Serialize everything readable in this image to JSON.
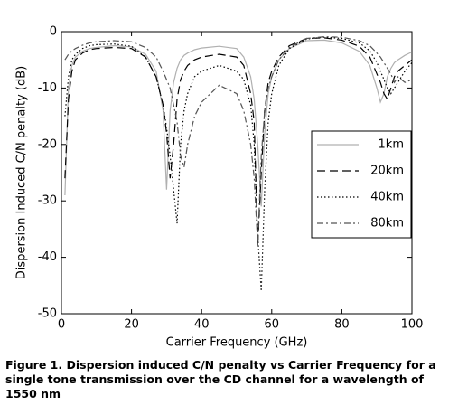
{
  "chart_data": {
    "type": "line",
    "xlabel": "Carrier Frequency (GHz)",
    "ylabel": "Dispersion Induced C/N penalty (dB)",
    "caption": "Figure 1. Dispersion induced C/N penalty vs Carrier Frequency for a single tone transmission over the CD channel for a wavelength of 1550 nm",
    "x": [
      1,
      2,
      3,
      4,
      6,
      8,
      10,
      15,
      20,
      24,
      27,
      29,
      30,
      31,
      32,
      33,
      34,
      35,
      36,
      38,
      40,
      45,
      50,
      52,
      54,
      55,
      56,
      57,
      58,
      59,
      60,
      62,
      65,
      70,
      75,
      80,
      85,
      88,
      90,
      91,
      92,
      93,
      94,
      95,
      96,
      98,
      100
    ],
    "series": [
      {
        "name": "1km",
        "color": "#b0b0b0",
        "dash": "none",
        "values": [
          -29,
          -10,
          -6,
          -4.5,
          -3.5,
          -3,
          -2.8,
          -2.5,
          -2.7,
          -4,
          -7,
          -14,
          -28,
          -14,
          -9,
          -6.5,
          -5,
          -4.2,
          -3.8,
          -3.2,
          -2.9,
          -2.6,
          -3,
          -4.5,
          -8,
          -12,
          -20,
          -31,
          -18,
          -11,
          -8,
          -5,
          -3,
          -1.6,
          -1.5,
          -2,
          -3.5,
          -6,
          -10,
          -12.5,
          -11,
          -8,
          -6.5,
          -5.5,
          -5,
          -4.2,
          -3.6
        ]
      },
      {
        "name": "20km",
        "color": "#000000",
        "dash": "9 5",
        "values": [
          -26,
          -12,
          -7,
          -5,
          -3.8,
          -3.2,
          -3,
          -2.8,
          -3,
          -4.5,
          -8,
          -13,
          -18,
          -26,
          -20,
          -12,
          -8.5,
          -7,
          -6,
          -5,
          -4.5,
          -4,
          -4.5,
          -6,
          -11,
          -16,
          -38,
          -25,
          -14,
          -9,
          -7,
          -4.5,
          -2.5,
          -1.2,
          -1.1,
          -1.5,
          -2.6,
          -4.5,
          -7.5,
          -9,
          -11,
          -12,
          -10,
          -8,
          -7,
          -6,
          -5
        ]
      },
      {
        "name": "40km",
        "color": "#000000",
        "dash": "1.5 2.5",
        "values": [
          -15,
          -8,
          -5,
          -4,
          -3,
          -2.5,
          -2.3,
          -2.2,
          -2.6,
          -4.5,
          -8,
          -13,
          -17,
          -22,
          -28,
          -34,
          -20,
          -14,
          -11,
          -8,
          -7,
          -6,
          -7,
          -8.5,
          -13,
          -20,
          -36,
          -46,
          -28,
          -16,
          -11,
          -6,
          -3,
          -1.3,
          -1,
          -1.2,
          -2,
          -3.4,
          -5.5,
          -7,
          -8.5,
          -10,
          -11,
          -10,
          -9,
          -7,
          -5.5
        ]
      },
      {
        "name": "80km",
        "color": "#555555",
        "dash": "7 3 2 3",
        "values": [
          -5,
          -4,
          -3.4,
          -3,
          -2.4,
          -2,
          -1.8,
          -1.6,
          -1.8,
          -2.8,
          -4.5,
          -7,
          -8.5,
          -10,
          -13,
          -16,
          -22,
          -24,
          -20,
          -15,
          -12.5,
          -9.5,
          -11,
          -14,
          -20,
          -26,
          -38,
          -22,
          -14,
          -10,
          -8,
          -5,
          -2.8,
          -1.2,
          -0.9,
          -1,
          -1.6,
          -2.5,
          -3.8,
          -4.5,
          -5.5,
          -6.5,
          -7.5,
          -9,
          -8,
          -9,
          -8.5
        ]
      }
    ],
    "xlim": [
      0,
      100
    ],
    "xticks": [
      0,
      20,
      40,
      60,
      80,
      100
    ],
    "ylim": [
      -50,
      0
    ],
    "yticks": [
      -50,
      -40,
      -30,
      -20,
      -10,
      0
    ],
    "grid": false
  }
}
